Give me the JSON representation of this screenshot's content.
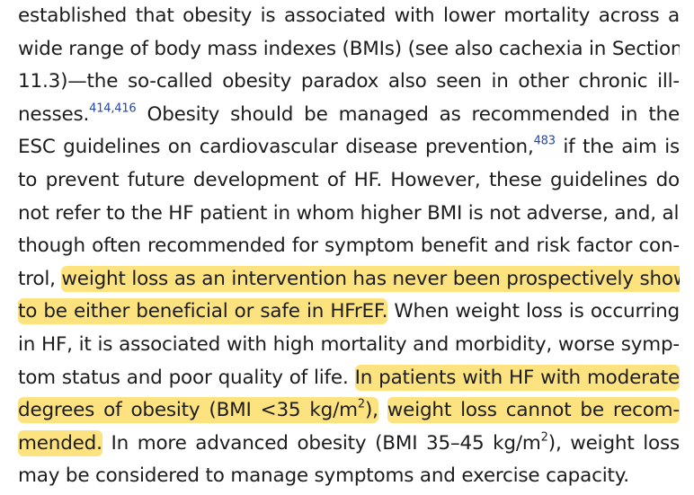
{
  "paragraph": {
    "l1": "established that obesity is associated with lower mortality across a",
    "l2": "wide range of body mass indexes (BMIs) (see also cachexia in Section",
    "l3": "11.3)—the so-called obesity paradox also seen in other chronic ill-",
    "l4_a": "nesses.",
    "ref_414": "414",
    "ref_comma": ",",
    "ref_416": "416",
    "l4_b": " Obesity should be managed as recommended in the",
    "l5_a": "ESC guidelines on cardiovascular disease prevention,",
    "ref_483": "483",
    "l5_b": " if the aim is",
    "l6": "to prevent future development of HF. However, these guidelines do",
    "l7": "not refer to the HF patient in whom higher BMI is not adverse, and, al-",
    "l8": "though often recommended for symptom benefit and risk factor con-",
    "l9_a": "trol, ",
    "l9_hl": "weight loss as an intervention has never been prospectively shown",
    "l10_hl": "to be either beneficial or safe in HFrEF.",
    "l10_b": " When weight loss is occurring",
    "l11": "in HF, it is associated with high mortality and morbidity, worse symp-",
    "l12_a": "tom status and poor quality of life. ",
    "l12_hl": "In patients with HF with moderate",
    "l13_hl_a": "degrees of obesity (BMI <35 kg/m",
    "l13_sup": "2",
    "l13_hl_b": "),",
    "l13_b": " ",
    "l13_hl2": "weight loss cannot be recom-",
    "l14_hl": "mended.",
    "l14_a": " In more advanced obesity (BMI 35–45 kg/m",
    "l14_sup": "2",
    "l14_b": "), weight loss",
    "l15": "may be considered to manage symptoms and exercise capacity."
  },
  "colors": {
    "highlight": "#fde380",
    "reference_link": "#1e46b4",
    "text": "#1c1c1c"
  }
}
